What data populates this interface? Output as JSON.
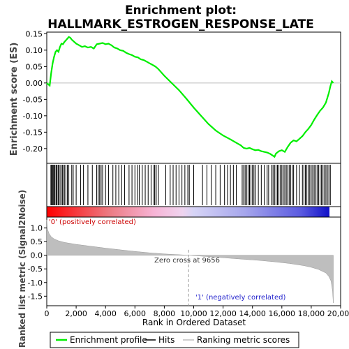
{
  "chart_data": {
    "type": "line",
    "title_line1": "Enrichment plot:",
    "title_line2": "HALLMARK_ESTROGEN_RESPONSE_LATE",
    "es_panel": {
      "ylabel": "Enrichment score (ES)",
      "ylim": [
        -0.245,
        0.155
      ],
      "yticks": [
        0.15,
        0.1,
        0.05,
        0.0,
        -0.05,
        -0.1,
        -0.15,
        -0.2
      ],
      "ytick_labels": [
        "0.15",
        "0.10",
        "0.05",
        "0.00",
        "-0.05",
        "-0.10",
        "-0.15",
        "-0.20"
      ],
      "line_color": "#00ee00",
      "x": [
        0,
        200,
        300,
        400,
        500,
        600,
        700,
        800,
        900,
        1000,
        1100,
        1200,
        1300,
        1400,
        1500,
        1600,
        1700,
        1800,
        2000,
        2200,
        2400,
        2600,
        2800,
        3000,
        3200,
        3400,
        3600,
        3800,
        4000,
        4200,
        4400,
        4600,
        4800,
        5000,
        5200,
        5400,
        5600,
        5800,
        6000,
        6200,
        6400,
        6600,
        6800,
        7000,
        7200,
        7400,
        7600,
        7800,
        8000,
        8500,
        9000,
        9500,
        10000,
        10500,
        11000,
        11500,
        12000,
        12500,
        13000,
        13200,
        13400,
        13600,
        13800,
        14000,
        14200,
        14400,
        14600,
        14800,
        15000,
        15200,
        15400,
        15500,
        15600,
        15800,
        16000,
        16200,
        16400,
        16600,
        16800,
        17000,
        17200,
        17400,
        17600,
        17800,
        18000,
        18200,
        18400,
        18600,
        18800,
        19000,
        19200,
        19300,
        19400,
        19500
      ],
      "y": [
        0.0,
        -0.008,
        0.03,
        0.06,
        0.08,
        0.095,
        0.1,
        0.095,
        0.11,
        0.12,
        0.118,
        0.125,
        0.13,
        0.135,
        0.14,
        0.138,
        0.132,
        0.128,
        0.12,
        0.115,
        0.11,
        0.112,
        0.108,
        0.11,
        0.105,
        0.118,
        0.12,
        0.122,
        0.118,
        0.12,
        0.115,
        0.108,
        0.105,
        0.1,
        0.098,
        0.092,
        0.088,
        0.085,
        0.08,
        0.078,
        0.072,
        0.07,
        0.065,
        0.06,
        0.055,
        0.05,
        0.042,
        0.032,
        0.022,
        0.0,
        -0.022,
        -0.048,
        -0.075,
        -0.1,
        -0.125,
        -0.145,
        -0.16,
        -0.172,
        -0.185,
        -0.19,
        -0.198,
        -0.2,
        -0.198,
        -0.202,
        -0.205,
        -0.204,
        -0.208,
        -0.21,
        -0.212,
        -0.216,
        -0.222,
        -0.225,
        -0.215,
        -0.208,
        -0.205,
        -0.21,
        -0.195,
        -0.182,
        -0.175,
        -0.178,
        -0.17,
        -0.162,
        -0.15,
        -0.14,
        -0.128,
        -0.112,
        -0.098,
        -0.085,
        -0.075,
        -0.06,
        -0.03,
        -0.01,
        0.005,
        0.0
      ]
    },
    "hits_x": [
      280,
      330,
      390,
      440,
      500,
      560,
      640,
      700,
      780,
      850,
      950,
      1050,
      1100,
      1200,
      1300,
      1400,
      1500,
      1700,
      1800,
      2000,
      2300,
      2500,
      2800,
      3100,
      3400,
      3500,
      3600,
      3700,
      3800,
      4000,
      4200,
      4500,
      4700,
      4900,
      5100,
      5300,
      5600,
      5800,
      6000,
      6200,
      6300,
      6500,
      6700,
      6900,
      7100,
      7300,
      7350,
      7450,
      7600,
      8100,
      8400,
      8600,
      8800,
      9000,
      9200,
      9400,
      9600,
      9700,
      10000,
      10600,
      10900,
      11200,
      11500,
      11800,
      12100,
      12300,
      12500,
      12700,
      12900,
      13300,
      13400,
      13500,
      13600,
      13700,
      13800,
      13900,
      14000,
      14100,
      14200,
      14400,
      14600,
      14800,
      15000,
      15100,
      15300,
      15400,
      15500,
      15600,
      15700,
      15800,
      15900,
      16000,
      16100,
      16200,
      16300,
      16400,
      16500,
      16600,
      16700,
      16800,
      17000,
      17200,
      17400,
      17500,
      17600,
      17700,
      17800,
      17900,
      18000,
      18100,
      18200,
      18300,
      18400,
      18500,
      18600,
      18700,
      18800,
      18900,
      19000,
      19100,
      19200,
      19300
    ],
    "ranked_panel": {
      "ylabel": "Ranked list metric (Signal2Noise)",
      "ylim": [
        -1.85,
        1.4
      ],
      "yticks": [
        1.0,
        0.5,
        0.0,
        -0.5,
        -1.0,
        -1.5
      ],
      "ytick_labels": [
        "1.0",
        "0.5",
        "0.0",
        "-0.5",
        "-1.0",
        "-1.5"
      ],
      "x": [
        0,
        50,
        150,
        300,
        500,
        800,
        1200,
        2000,
        3000,
        4000,
        5000,
        6000,
        7000,
        8000,
        9000,
        9656,
        10500,
        11500,
        12500,
        13500,
        14500,
        15500,
        16500,
        17500,
        18000,
        18500,
        19000,
        19200,
        19350,
        19450,
        19500
      ],
      "y": [
        1.3,
        0.95,
        0.8,
        0.68,
        0.6,
        0.53,
        0.47,
        0.4,
        0.33,
        0.26,
        0.2,
        0.14,
        0.09,
        0.05,
        0.02,
        0.0,
        -0.03,
        -0.07,
        -0.11,
        -0.15,
        -0.19,
        -0.24,
        -0.3,
        -0.38,
        -0.44,
        -0.52,
        -0.65,
        -0.78,
        -0.95,
        -1.3,
        -1.75
      ],
      "zero_cross_label": "Zero cross at 9656",
      "zero_cross_x": 9656,
      "pos_label": "'0' (positively correlated)",
      "neg_label": "'1' (negatively correlated)"
    },
    "xaxis": {
      "label": "Rank in Ordered Dataset",
      "xlim": [
        0,
        20000
      ],
      "ticks": [
        0,
        2000,
        4000,
        6000,
        8000,
        10000,
        12000,
        14000,
        16000,
        18000,
        20000
      ],
      "tick_labels": [
        "0",
        "2,000",
        "4,000",
        "6,000",
        "8,000",
        "10,000",
        "12,000",
        "14,000",
        "16,000",
        "18,000",
        "20,000"
      ],
      "n_genes": 19500
    },
    "legend": {
      "placement": "bottom",
      "items": [
        {
          "label": "Enrichment profile",
          "color": "#00ee00"
        },
        {
          "label": "Hits",
          "color": "#000000"
        },
        {
          "label": "Ranking metric scores",
          "color": "#bebebe"
        }
      ]
    }
  }
}
